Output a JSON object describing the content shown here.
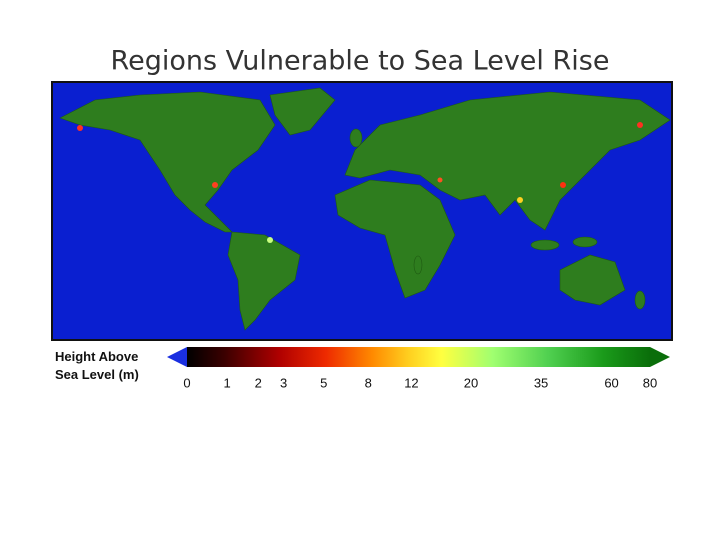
{
  "title": "Regions Vulnerable to Sea Level Rise",
  "legend": {
    "label_lines": [
      "Height Above",
      "Sea Level (m)"
    ],
    "ticks": [
      0,
      1,
      2,
      3,
      5,
      8,
      12,
      20,
      35,
      60,
      80
    ]
  }
}
